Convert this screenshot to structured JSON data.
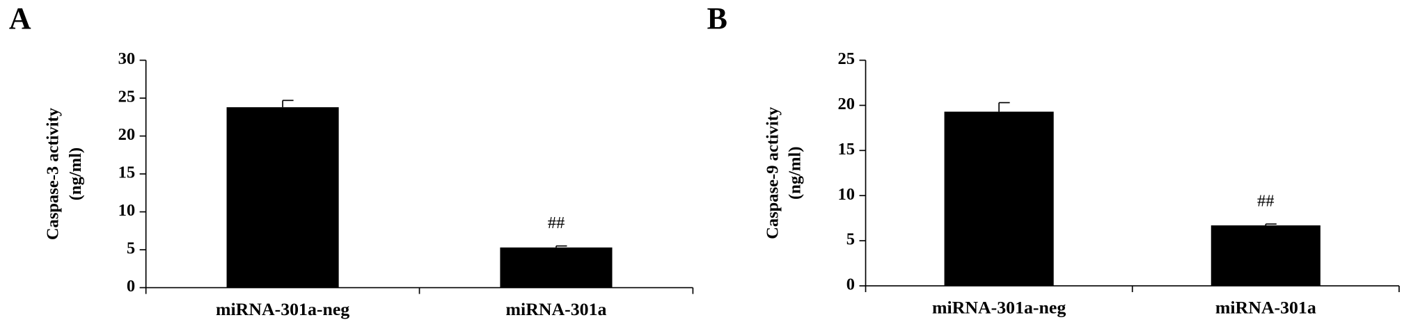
{
  "chart_data": [
    {
      "type": "bar",
      "panel": "A",
      "ylabel": [
        "Caspase-3 activity",
        "(ng/ml)"
      ],
      "categories": [
        "miRNA-301a-neg",
        "miRNA-301a"
      ],
      "values": [
        23.8,
        5.3
      ],
      "errors": [
        0.9,
        0.2
      ],
      "color": "#000000",
      "ylim": [
        0,
        30
      ],
      "yticks": [
        0,
        5,
        10,
        15,
        20,
        25,
        30
      ],
      "annotations": [
        {
          "category": "miRNA-301a",
          "text": "##"
        }
      ]
    },
    {
      "type": "bar",
      "panel": "B",
      "ylabel": [
        "Caspase-9 activity",
        "(ng/ml)"
      ],
      "categories": [
        "miRNA-301a-neg",
        "miRNA-301a"
      ],
      "values": [
        19.3,
        6.7
      ],
      "errors": [
        1.0,
        0.15
      ],
      "color": "#000000",
      "ylim": [
        0,
        25
      ],
      "yticks": [
        0,
        5,
        10,
        15,
        20,
        25
      ],
      "annotations": [
        {
          "category": "miRNA-301a",
          "text": "##"
        }
      ]
    }
  ]
}
